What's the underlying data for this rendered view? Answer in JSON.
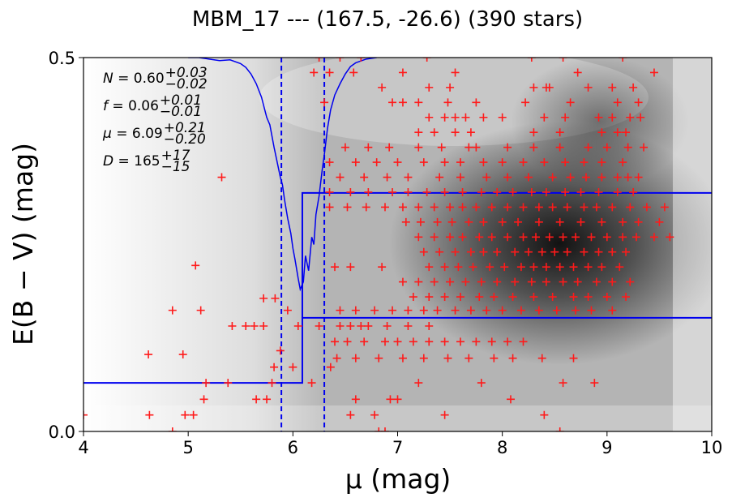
{
  "chart_data": {
    "type": "scatter",
    "title": "MBM_17 --- (167.5, -26.6) (390 stars)",
    "xlabel": "μ (mag)",
    "ylabel": "E(B − V) (mag)",
    "xlim": [
      4,
      10
    ],
    "ylim": [
      0,
      0.5
    ],
    "x_ticks": [
      "4",
      "5",
      "6",
      "7",
      "8",
      "9",
      "10"
    ],
    "y_ticks": [
      "0.0",
      "0.5"
    ],
    "annotations": [
      {
        "lhs": "N",
        "value": "0.60",
        "upper": "+0.03",
        "lower": "−0.02"
      },
      {
        "lhs": "f",
        "value": "0.06",
        "upper": "+0.01",
        "lower": "−0.01"
      },
      {
        "lhs": "μ",
        "value": "6.09",
        "upper": "+0.21",
        "lower": "−0.20"
      },
      {
        "lhs": "D",
        "value": "165",
        "upper": "+17",
        "lower": "−15"
      }
    ],
    "vertical_lines": [
      5.89,
      6.3
    ],
    "step_model": {
      "mu": 6.09,
      "lower_before": 0.065,
      "lower_after": 0.152,
      "upper_after": 0.319
    },
    "distance_curve": [
      [
        5.0,
        0.5
      ],
      [
        5.1,
        0.5
      ],
      [
        5.2,
        0.498
      ],
      [
        5.3,
        0.496
      ],
      [
        5.4,
        0.497
      ],
      [
        5.5,
        0.492
      ],
      [
        5.55,
        0.487
      ],
      [
        5.6,
        0.478
      ],
      [
        5.65,
        0.465
      ],
      [
        5.7,
        0.447
      ],
      [
        5.75,
        0.42
      ],
      [
        5.78,
        0.41
      ],
      [
        5.8,
        0.395
      ],
      [
        5.82,
        0.38
      ],
      [
        5.85,
        0.36
      ],
      [
        5.88,
        0.34
      ],
      [
        5.9,
        0.33
      ],
      [
        5.92,
        0.31
      ],
      [
        5.95,
        0.285
      ],
      [
        5.98,
        0.265
      ],
      [
        6.0,
        0.245
      ],
      [
        6.02,
        0.23
      ],
      [
        6.05,
        0.205
      ],
      [
        6.07,
        0.19
      ],
      [
        6.1,
        0.2
      ],
      [
        6.12,
        0.235
      ],
      [
        6.15,
        0.215
      ],
      [
        6.18,
        0.26
      ],
      [
        6.2,
        0.25
      ],
      [
        6.22,
        0.29
      ],
      [
        6.25,
        0.315
      ],
      [
        6.28,
        0.35
      ],
      [
        6.3,
        0.37
      ],
      [
        6.33,
        0.405
      ],
      [
        6.36,
        0.43
      ],
      [
        6.4,
        0.45
      ],
      [
        6.45,
        0.465
      ],
      [
        6.5,
        0.478
      ],
      [
        6.55,
        0.488
      ],
      [
        6.6,
        0.493
      ],
      [
        6.7,
        0.498
      ],
      [
        6.8,
        0.5
      ]
    ],
    "heatmap_peak": {
      "x": 8.5,
      "y": 0.23
    },
    "points": [
      [
        4.0,
        0.022
      ],
      [
        4.63,
        0.022
      ],
      [
        4.85,
        0.0
      ],
      [
        4.97,
        0.022
      ],
      [
        5.05,
        0.022
      ],
      [
        5.15,
        0.043
      ],
      [
        5.17,
        0.065
      ],
      [
        5.38,
        0.065
      ],
      [
        5.65,
        0.043
      ],
      [
        5.75,
        0.043
      ],
      [
        5.8,
        0.065
      ],
      [
        5.82,
        0.086
      ],
      [
        5.88,
        0.108
      ],
      [
        6.0,
        0.086
      ],
      [
        6.18,
        0.065
      ],
      [
        6.36,
        0.086
      ],
      [
        6.55,
        0.022
      ],
      [
        6.6,
        0.043
      ],
      [
        6.78,
        0.022
      ],
      [
        6.82,
        0.0
      ],
      [
        6.88,
        0.0
      ],
      [
        6.93,
        0.043
      ],
      [
        7.0,
        0.043
      ],
      [
        7.2,
        0.065
      ],
      [
        7.45,
        0.022
      ],
      [
        7.8,
        0.065
      ],
      [
        8.08,
        0.043
      ],
      [
        8.4,
        0.022
      ],
      [
        8.55,
        0.0
      ],
      [
        8.58,
        0.065
      ],
      [
        8.88,
        0.065
      ],
      [
        4.85,
        0.162
      ],
      [
        5.12,
        0.162
      ],
      [
        5.07,
        0.222
      ],
      [
        4.62,
        0.103
      ],
      [
        4.95,
        0.103
      ],
      [
        5.42,
        0.141
      ],
      [
        5.55,
        0.141
      ],
      [
        5.63,
        0.141
      ],
      [
        5.72,
        0.141
      ],
      [
        5.95,
        0.162
      ],
      [
        6.05,
        0.141
      ],
      [
        6.25,
        0.141
      ],
      [
        6.45,
        0.141
      ],
      [
        6.55,
        0.141
      ],
      [
        6.65,
        0.141
      ],
      [
        6.72,
        0.141
      ],
      [
        6.9,
        0.141
      ],
      [
        7.1,
        0.141
      ],
      [
        7.3,
        0.141
      ],
      [
        5.32,
        0.34
      ],
      [
        5.72,
        0.178
      ],
      [
        5.83,
        0.178
      ],
      [
        6.4,
        0.12
      ],
      [
        6.52,
        0.12
      ],
      [
        6.68,
        0.12
      ],
      [
        6.88,
        0.12
      ],
      [
        7.0,
        0.12
      ],
      [
        7.15,
        0.12
      ],
      [
        7.3,
        0.12
      ],
      [
        7.45,
        0.12
      ],
      [
        7.6,
        0.12
      ],
      [
        7.75,
        0.12
      ],
      [
        7.9,
        0.12
      ],
      [
        8.05,
        0.12
      ],
      [
        8.2,
        0.12
      ],
      [
        6.42,
        0.098
      ],
      [
        6.6,
        0.098
      ],
      [
        6.82,
        0.098
      ],
      [
        7.05,
        0.098
      ],
      [
        7.25,
        0.098
      ],
      [
        7.48,
        0.098
      ],
      [
        7.68,
        0.098
      ],
      [
        7.92,
        0.098
      ],
      [
        8.1,
        0.098
      ],
      [
        8.38,
        0.098
      ],
      [
        8.68,
        0.098
      ],
      [
        6.45,
        0.162
      ],
      [
        6.6,
        0.162
      ],
      [
        6.78,
        0.162
      ],
      [
        6.95,
        0.162
      ],
      [
        7.1,
        0.162
      ],
      [
        7.25,
        0.162
      ],
      [
        7.38,
        0.162
      ],
      [
        7.55,
        0.162
      ],
      [
        7.7,
        0.162
      ],
      [
        7.85,
        0.162
      ],
      [
        8.0,
        0.162
      ],
      [
        8.18,
        0.162
      ],
      [
        8.35,
        0.162
      ],
      [
        8.52,
        0.162
      ],
      [
        8.7,
        0.162
      ],
      [
        8.85,
        0.162
      ],
      [
        9.05,
        0.162
      ],
      [
        6.4,
        0.22
      ],
      [
        6.55,
        0.22
      ],
      [
        6.85,
        0.22
      ],
      [
        7.05,
        0.2
      ],
      [
        7.2,
        0.2
      ],
      [
        7.35,
        0.2
      ],
      [
        7.5,
        0.2
      ],
      [
        7.65,
        0.2
      ],
      [
        7.8,
        0.2
      ],
      [
        7.95,
        0.2
      ],
      [
        8.12,
        0.2
      ],
      [
        8.28,
        0.2
      ],
      [
        8.42,
        0.2
      ],
      [
        8.58,
        0.2
      ],
      [
        8.72,
        0.2
      ],
      [
        8.9,
        0.2
      ],
      [
        9.05,
        0.2
      ],
      [
        9.22,
        0.2
      ],
      [
        7.15,
        0.18
      ],
      [
        7.3,
        0.18
      ],
      [
        7.45,
        0.18
      ],
      [
        7.6,
        0.18
      ],
      [
        7.78,
        0.18
      ],
      [
        7.92,
        0.18
      ],
      [
        8.1,
        0.18
      ],
      [
        8.3,
        0.18
      ],
      [
        8.48,
        0.18
      ],
      [
        8.68,
        0.18
      ],
      [
        8.82,
        0.18
      ],
      [
        9.0,
        0.18
      ],
      [
        9.18,
        0.18
      ],
      [
        7.25,
        0.24
      ],
      [
        7.4,
        0.24
      ],
      [
        7.55,
        0.24
      ],
      [
        7.7,
        0.24
      ],
      [
        7.82,
        0.24
      ],
      [
        7.95,
        0.24
      ],
      [
        8.12,
        0.24
      ],
      [
        8.25,
        0.24
      ],
      [
        8.38,
        0.24
      ],
      [
        8.5,
        0.24
      ],
      [
        8.62,
        0.24
      ],
      [
        8.78,
        0.24
      ],
      [
        8.92,
        0.24
      ],
      [
        9.05,
        0.24
      ],
      [
        9.18,
        0.24
      ],
      [
        7.3,
        0.22
      ],
      [
        7.45,
        0.22
      ],
      [
        7.58,
        0.22
      ],
      [
        7.72,
        0.22
      ],
      [
        7.88,
        0.22
      ],
      [
        8.02,
        0.22
      ],
      [
        8.18,
        0.22
      ],
      [
        8.3,
        0.22
      ],
      [
        8.42,
        0.22
      ],
      [
        8.55,
        0.22
      ],
      [
        8.68,
        0.22
      ],
      [
        8.82,
        0.22
      ],
      [
        8.95,
        0.22
      ],
      [
        9.12,
        0.22
      ],
      [
        7.2,
        0.26
      ],
      [
        7.35,
        0.26
      ],
      [
        7.5,
        0.26
      ],
      [
        7.62,
        0.26
      ],
      [
        7.78,
        0.26
      ],
      [
        7.9,
        0.26
      ],
      [
        8.05,
        0.26
      ],
      [
        8.2,
        0.26
      ],
      [
        8.32,
        0.26
      ],
      [
        8.45,
        0.26
      ],
      [
        8.58,
        0.26
      ],
      [
        8.7,
        0.26
      ],
      [
        8.85,
        0.26
      ],
      [
        9.0,
        0.26
      ],
      [
        9.15,
        0.26
      ],
      [
        9.28,
        0.26
      ],
      [
        9.45,
        0.26
      ],
      [
        9.6,
        0.26
      ],
      [
        7.08,
        0.28
      ],
      [
        7.22,
        0.28
      ],
      [
        7.38,
        0.28
      ],
      [
        7.52,
        0.28
      ],
      [
        7.68,
        0.28
      ],
      [
        7.82,
        0.28
      ],
      [
        8.0,
        0.28
      ],
      [
        8.15,
        0.28
      ],
      [
        8.35,
        0.28
      ],
      [
        8.55,
        0.28
      ],
      [
        8.75,
        0.28
      ],
      [
        8.95,
        0.28
      ],
      [
        9.15,
        0.28
      ],
      [
        9.3,
        0.28
      ],
      [
        9.5,
        0.28
      ],
      [
        6.35,
        0.3
      ],
      [
        6.52,
        0.3
      ],
      [
        6.7,
        0.3
      ],
      [
        6.88,
        0.3
      ],
      [
        7.05,
        0.3
      ],
      [
        7.2,
        0.3
      ],
      [
        7.35,
        0.3
      ],
      [
        7.5,
        0.3
      ],
      [
        7.62,
        0.3
      ],
      [
        7.75,
        0.3
      ],
      [
        7.9,
        0.3
      ],
      [
        8.05,
        0.3
      ],
      [
        8.2,
        0.3
      ],
      [
        8.35,
        0.3
      ],
      [
        8.48,
        0.3
      ],
      [
        8.62,
        0.3
      ],
      [
        8.78,
        0.3
      ],
      [
        8.9,
        0.3
      ],
      [
        9.05,
        0.3
      ],
      [
        9.22,
        0.3
      ],
      [
        9.38,
        0.3
      ],
      [
        9.55,
        0.3
      ],
      [
        6.35,
        0.32
      ],
      [
        6.55,
        0.32
      ],
      [
        6.72,
        0.32
      ],
      [
        6.95,
        0.32
      ],
      [
        7.1,
        0.32
      ],
      [
        7.28,
        0.32
      ],
      [
        7.45,
        0.32
      ],
      [
        7.62,
        0.32
      ],
      [
        7.8,
        0.32
      ],
      [
        7.95,
        0.32
      ],
      [
        8.1,
        0.32
      ],
      [
        8.28,
        0.32
      ],
      [
        8.42,
        0.32
      ],
      [
        8.6,
        0.32
      ],
      [
        8.75,
        0.32
      ],
      [
        8.92,
        0.32
      ],
      [
        9.1,
        0.32
      ],
      [
        9.25,
        0.32
      ],
      [
        6.45,
        0.34
      ],
      [
        6.68,
        0.34
      ],
      [
        6.9,
        0.34
      ],
      [
        7.1,
        0.34
      ],
      [
        7.4,
        0.34
      ],
      [
        7.6,
        0.34
      ],
      [
        7.85,
        0.34
      ],
      [
        8.05,
        0.34
      ],
      [
        8.25,
        0.34
      ],
      [
        8.48,
        0.34
      ],
      [
        8.65,
        0.34
      ],
      [
        8.8,
        0.34
      ],
      [
        8.95,
        0.34
      ],
      [
        9.1,
        0.34
      ],
      [
        9.2,
        0.34
      ],
      [
        9.3,
        0.34
      ],
      [
        6.35,
        0.36
      ],
      [
        6.6,
        0.36
      ],
      [
        6.8,
        0.36
      ],
      [
        7.0,
        0.36
      ],
      [
        7.25,
        0.36
      ],
      [
        7.45,
        0.36
      ],
      [
        7.6,
        0.36
      ],
      [
        7.82,
        0.36
      ],
      [
        8.0,
        0.36
      ],
      [
        8.2,
        0.36
      ],
      [
        8.4,
        0.36
      ],
      [
        8.6,
        0.36
      ],
      [
        8.78,
        0.36
      ],
      [
        8.95,
        0.36
      ],
      [
        9.15,
        0.36
      ],
      [
        6.5,
        0.38
      ],
      [
        6.72,
        0.38
      ],
      [
        6.92,
        0.38
      ],
      [
        7.2,
        0.38
      ],
      [
        7.42,
        0.38
      ],
      [
        7.68,
        0.38
      ],
      [
        7.75,
        0.38
      ],
      [
        8.05,
        0.38
      ],
      [
        8.3,
        0.38
      ],
      [
        8.55,
        0.38
      ],
      [
        8.82,
        0.38
      ],
      [
        9.0,
        0.38
      ],
      [
        9.2,
        0.38
      ],
      [
        9.35,
        0.38
      ],
      [
        7.2,
        0.4
      ],
      [
        7.35,
        0.4
      ],
      [
        7.55,
        0.4
      ],
      [
        7.7,
        0.4
      ],
      [
        8.3,
        0.4
      ],
      [
        8.55,
        0.4
      ],
      [
        8.95,
        0.4
      ],
      [
        9.1,
        0.4
      ],
      [
        9.18,
        0.4
      ],
      [
        7.3,
        0.42
      ],
      [
        7.45,
        0.42
      ],
      [
        7.55,
        0.42
      ],
      [
        7.65,
        0.42
      ],
      [
        7.82,
        0.42
      ],
      [
        8.0,
        0.42
      ],
      [
        8.4,
        0.42
      ],
      [
        8.6,
        0.42
      ],
      [
        8.92,
        0.42
      ],
      [
        9.05,
        0.42
      ],
      [
        9.22,
        0.42
      ],
      [
        9.32,
        0.42
      ],
      [
        6.3,
        0.44
      ],
      [
        6.95,
        0.44
      ],
      [
        7.05,
        0.44
      ],
      [
        7.2,
        0.44
      ],
      [
        7.48,
        0.44
      ],
      [
        7.75,
        0.44
      ],
      [
        8.22,
        0.44
      ],
      [
        8.65,
        0.44
      ],
      [
        9.1,
        0.44
      ],
      [
        9.3,
        0.44
      ],
      [
        6.85,
        0.46
      ],
      [
        7.3,
        0.46
      ],
      [
        7.5,
        0.46
      ],
      [
        8.3,
        0.46
      ],
      [
        8.42,
        0.46
      ],
      [
        8.45,
        0.46
      ],
      [
        8.82,
        0.46
      ],
      [
        9.05,
        0.46
      ],
      [
        9.25,
        0.46
      ],
      [
        6.2,
        0.48
      ],
      [
        6.35,
        0.48
      ],
      [
        6.58,
        0.48
      ],
      [
        7.05,
        0.48
      ],
      [
        7.55,
        0.48
      ],
      [
        8.72,
        0.48
      ],
      [
        9.45,
        0.48
      ],
      [
        6.25,
        0.5
      ],
      [
        6.45,
        0.5
      ],
      [
        6.65,
        0.5
      ],
      [
        7.28,
        0.5
      ],
      [
        8.28,
        0.5
      ],
      [
        8.58,
        0.5
      ],
      [
        9.15,
        0.5
      ]
    ]
  }
}
